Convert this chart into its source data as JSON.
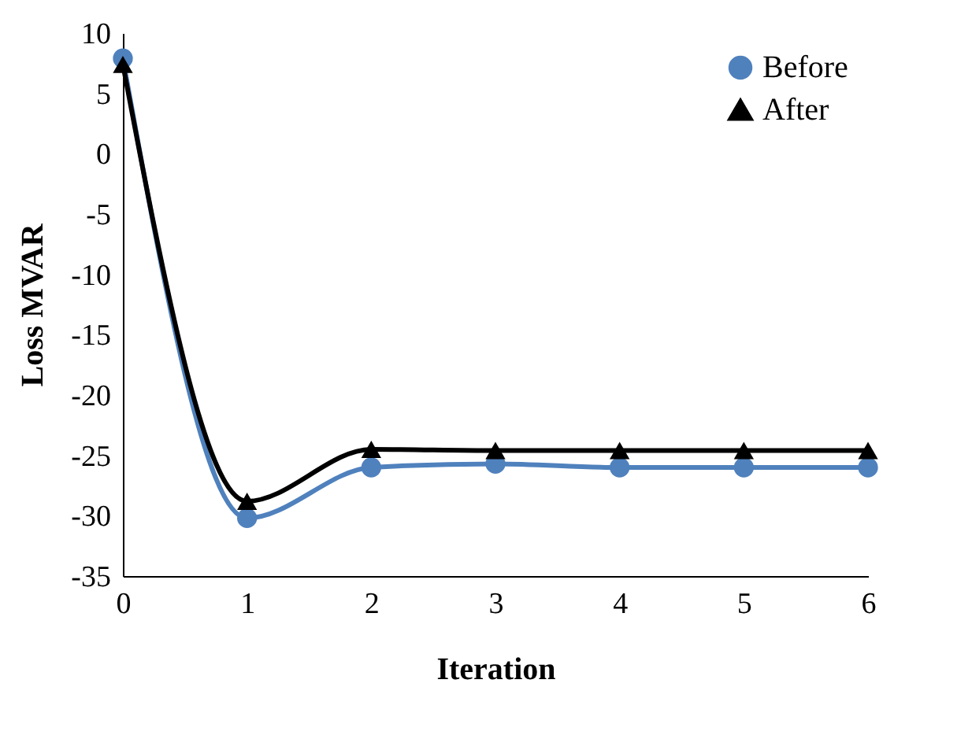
{
  "chart_data": {
    "type": "line",
    "xlabel": "Iteration",
    "ylabel": "Loss MVAR",
    "x": [
      0,
      1,
      2,
      3,
      4,
      5,
      6
    ],
    "series": [
      {
        "name": "Before",
        "color": "#4f81bd",
        "marker": "circle",
        "values": [
          7.9,
          -30.2,
          -26.0,
          -25.7,
          -26.0,
          -26.0,
          -26.0
        ]
      },
      {
        "name": "After",
        "color": "#000000",
        "marker": "triangle",
        "values": [
          7.4,
          -28.8,
          -24.5,
          -24.6,
          -24.6,
          -24.6,
          -24.6
        ]
      }
    ],
    "xlim": [
      0,
      6
    ],
    "xticks": [
      0,
      1,
      2,
      3,
      4,
      5,
      6
    ],
    "ylim": [
      -35,
      10
    ],
    "yticks": [
      -35,
      -30,
      -25,
      -20,
      -15,
      -10,
      -5,
      0,
      5,
      10
    ],
    "grid": false,
    "legend": "top right"
  }
}
